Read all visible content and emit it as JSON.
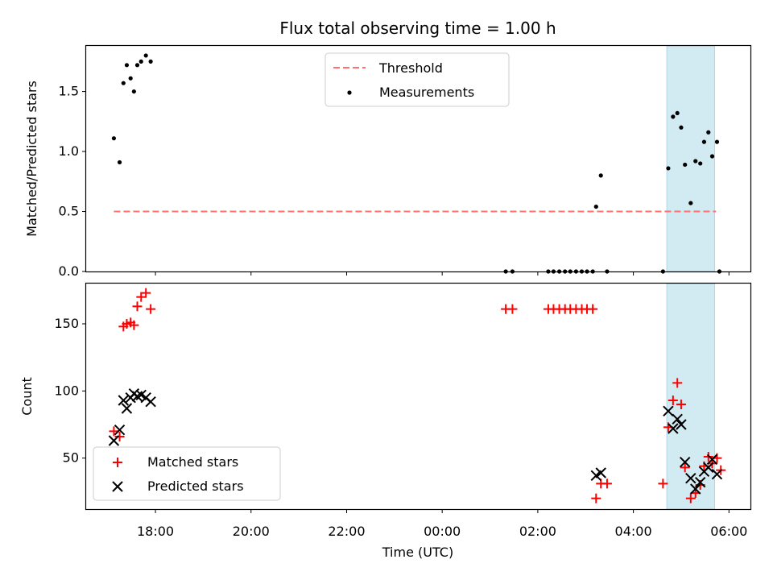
{
  "chart_data": [
    {
      "type": "scatter",
      "title": "Flux total observing time = 1.00 h",
      "ylabel": "Matched/Predicted stars",
      "ylim": [
        0,
        1.88
      ],
      "yticks": [
        "0.0",
        "0.5",
        "1.0",
        "1.5"
      ],
      "ytick_values": [
        0,
        0.5,
        1.0,
        1.5
      ],
      "xlim_hours": [
        16.55,
        30.45
      ],
      "highlight_span_hours": [
        28.7,
        29.7
      ],
      "highlight_color": "#add8e6",
      "threshold": {
        "name": "Threshold",
        "value": 0.5,
        "x_start": 17.13,
        "x_end": 29.73,
        "color": "#ff7070"
      },
      "series": [
        {
          "name": "Measurements",
          "color": "#000000",
          "x": [
            17.13,
            17.25,
            17.33,
            17.4,
            17.48,
            17.55,
            17.62,
            17.7,
            17.8,
            17.9,
            25.33,
            25.47,
            26.22,
            26.33,
            26.45,
            26.57,
            26.68,
            26.8,
            26.92,
            27.03,
            27.15,
            27.22,
            27.32,
            27.45,
            28.62,
            28.73,
            28.83,
            28.92,
            29.0,
            29.08,
            29.2,
            29.3,
            29.4,
            29.48,
            29.57,
            29.65,
            29.75,
            29.8
          ],
          "y": [
            1.11,
            0.91,
            1.57,
            1.72,
            1.61,
            1.5,
            1.72,
            1.75,
            1.8,
            1.75,
            0.0,
            0.0,
            0.0,
            0.0,
            0.0,
            0.0,
            0.0,
            0.0,
            0.0,
            0.0,
            0.0,
            0.54,
            0.8,
            0.0,
            0.0,
            0.86,
            1.29,
            1.32,
            1.2,
            0.89,
            0.57,
            0.92,
            0.9,
            1.08,
            1.16,
            0.96,
            1.08,
            0.0
          ]
        }
      ]
    },
    {
      "type": "scatter",
      "xlabel": "Time (UTC)",
      "ylabel": "Count",
      "ylim": [
        12,
        180
      ],
      "yticks": [
        "50",
        "100",
        "150"
      ],
      "ytick_values": [
        50,
        100,
        150
      ],
      "xticks": [
        "18:00",
        "20:00",
        "22:00",
        "00:00",
        "02:00",
        "04:00",
        "06:00"
      ],
      "xtick_hours": [
        18,
        20,
        22,
        24,
        26,
        28,
        30
      ],
      "xlim_hours": [
        16.55,
        30.45
      ],
      "highlight_span_hours": [
        28.7,
        29.7
      ],
      "highlight_color": "#add8e6",
      "series": [
        {
          "name": "Matched stars",
          "marker": "plus",
          "color": "#ff0000",
          "x": [
            17.13,
            17.25,
            17.33,
            17.4,
            17.48,
            17.55,
            17.62,
            17.7,
            17.8,
            17.9,
            25.33,
            25.47,
            26.22,
            26.33,
            26.45,
            26.57,
            26.68,
            26.8,
            26.92,
            27.03,
            27.15,
            27.22,
            27.32,
            27.45,
            28.62,
            28.73,
            28.83,
            28.92,
            29.0,
            29.08,
            29.2,
            29.3,
            29.4,
            29.48,
            29.57,
            29.65,
            29.75,
            29.83
          ],
          "y": [
            70,
            66,
            148,
            150,
            151,
            149,
            163,
            170,
            173,
            161,
            161,
            161,
            161,
            161,
            161,
            161,
            161,
            161,
            161,
            161,
            161,
            20,
            31,
            31,
            31,
            73,
            93,
            106,
            90,
            43,
            20,
            24,
            30,
            44,
            51,
            46,
            50,
            41
          ]
        },
        {
          "name": "Predicted stars",
          "marker": "x",
          "color": "#000000",
          "x": [
            17.13,
            17.25,
            17.33,
            17.4,
            17.48,
            17.55,
            17.62,
            17.7,
            17.8,
            17.9,
            27.22,
            27.32,
            28.73,
            28.83,
            28.92,
            29.0,
            29.08,
            29.2,
            29.3,
            29.4,
            29.48,
            29.57,
            29.65,
            29.75
          ],
          "y": [
            63,
            71,
            93,
            87,
            95,
            98,
            96,
            97,
            95,
            92,
            37,
            39,
            85,
            72,
            79,
            75,
            47,
            35,
            27,
            32,
            40,
            43,
            49,
            38
          ]
        }
      ]
    }
  ]
}
